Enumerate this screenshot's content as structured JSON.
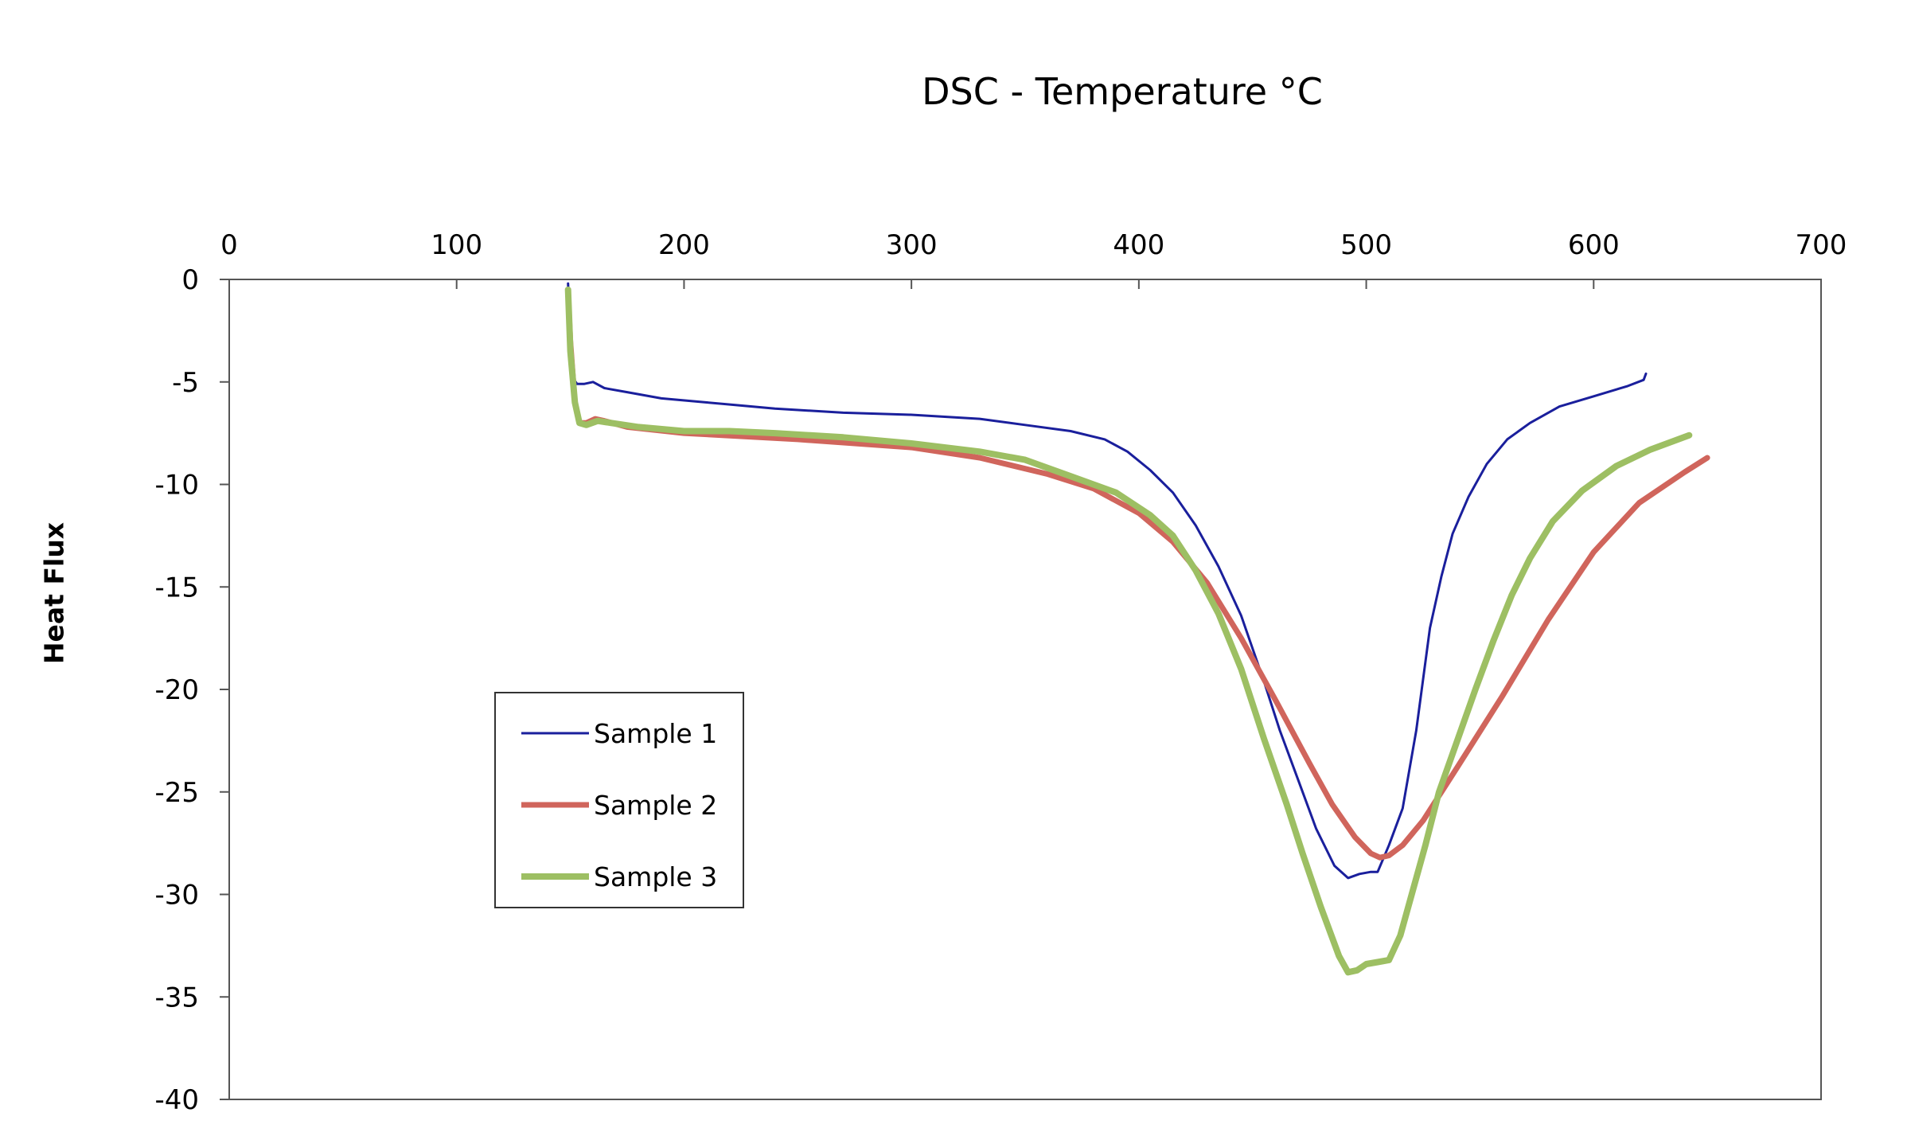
{
  "chart_data": {
    "type": "line",
    "title": "DSC - Temperature °C",
    "xlabel": "",
    "ylabel": "Heat Flux",
    "xlim": [
      0,
      700
    ],
    "ylim": [
      -40,
      0
    ],
    "x_ticks": [
      "0",
      "100",
      "200",
      "300",
      "400",
      "500",
      "600",
      "700"
    ],
    "y_ticks": [
      "0",
      "-5",
      "-10",
      "-15",
      "-20",
      "-25",
      "-30",
      "-35",
      "-40"
    ],
    "x_axis_position": "top",
    "grid": false,
    "legend_position": "lower-left",
    "series": [
      {
        "name": "Sample 1",
        "color": "#1a1f9c",
        "x": [
          149,
          150,
          151,
          153,
          156,
          160,
          165,
          175,
          190,
          210,
          240,
          270,
          300,
          330,
          350,
          370,
          385,
          395,
          405,
          415,
          425,
          435,
          445,
          455,
          462,
          470,
          478,
          486,
          492,
          497,
          502,
          505,
          510,
          516,
          522,
          528,
          533,
          538,
          545,
          553,
          562,
          572,
          585,
          600,
          615,
          622,
          623
        ],
        "values": [
          -0.2,
          -2.5,
          -4.8,
          -5.1,
          -5.1,
          -5.0,
          -5.3,
          -5.5,
          -5.8,
          -6.0,
          -6.3,
          -6.5,
          -6.6,
          -6.8,
          -7.1,
          -7.4,
          -7.8,
          -8.4,
          -9.3,
          -10.4,
          -12.0,
          -14.0,
          -16.4,
          -19.6,
          -22.0,
          -24.4,
          -26.8,
          -28.6,
          -29.2,
          -29.0,
          -28.9,
          -28.9,
          -27.6,
          -25.8,
          -22.0,
          -17.0,
          -14.5,
          -12.4,
          -10.6,
          -9.0,
          -7.8,
          -7.0,
          -6.2,
          -5.7,
          -5.2,
          -4.9,
          -4.6
        ]
      },
      {
        "name": "Sample 2",
        "color": "#d0655c",
        "x": [
          149,
          150,
          152,
          154,
          157,
          161,
          165,
          175,
          200,
          250,
          300,
          330,
          360,
          380,
          400,
          415,
          430,
          445,
          460,
          475,
          485,
          495,
          502,
          506,
          510,
          516,
          525,
          540,
          560,
          580,
          600,
          620,
          640,
          650
        ],
        "values": [
          -0.6,
          -3.0,
          -6.0,
          -7.0,
          -7.0,
          -6.8,
          -6.9,
          -7.2,
          -7.5,
          -7.8,
          -8.2,
          -8.7,
          -9.5,
          -10.2,
          -11.4,
          -12.8,
          -14.8,
          -17.5,
          -20.5,
          -23.6,
          -25.6,
          -27.2,
          -28.0,
          -28.2,
          -28.1,
          -27.6,
          -26.4,
          -23.8,
          -20.3,
          -16.6,
          -13.3,
          -10.9,
          -9.4,
          -8.7
        ]
      },
      {
        "name": "Sample 3",
        "color": "#9dbf63",
        "x": [
          149,
          150,
          152,
          154,
          157,
          162,
          168,
          180,
          200,
          220,
          240,
          270,
          300,
          330,
          350,
          370,
          390,
          405,
          415,
          425,
          435,
          445,
          455,
          465,
          472,
          480,
          488,
          492,
          496,
          500,
          505,
          510,
          515,
          520,
          526,
          532,
          540,
          548,
          556,
          564,
          572,
          582,
          595,
          610,
          625,
          642
        ],
        "values": [
          -0.5,
          -3.5,
          -6.0,
          -7.0,
          -7.1,
          -6.9,
          -7.0,
          -7.2,
          -7.4,
          -7.4,
          -7.5,
          -7.7,
          -8.0,
          -8.4,
          -8.8,
          -9.6,
          -10.4,
          -11.5,
          -12.5,
          -14.2,
          -16.3,
          -19.0,
          -22.4,
          -25.6,
          -28.0,
          -30.6,
          -33.0,
          -33.8,
          -33.7,
          -33.4,
          -33.3,
          -33.2,
          -32.0,
          -30.0,
          -27.6,
          -25.0,
          -22.5,
          -20.0,
          -17.6,
          -15.4,
          -13.6,
          -11.8,
          -10.3,
          -9.1,
          -8.3,
          -7.6
        ]
      }
    ]
  }
}
